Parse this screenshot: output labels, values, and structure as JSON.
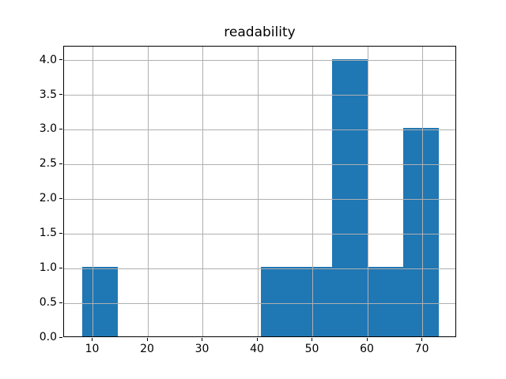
{
  "figure": {
    "background_color": "#ffffff"
  },
  "chart_data": {
    "type": "bar",
    "subtype": "histogram",
    "title": "readability",
    "xlabel": "",
    "ylabel": "",
    "bin_edges": [
      8.0,
      14.5,
      21.0,
      27.5,
      34.0,
      40.5,
      47.0,
      53.5,
      60.0,
      66.5,
      73.0
    ],
    "counts": [
      1,
      0,
      0,
      0,
      0,
      1,
      1,
      4,
      1,
      3
    ],
    "xlim": [
      4.75,
      76.25
    ],
    "ylim": [
      0,
      4.2
    ],
    "xticks": [
      10,
      20,
      30,
      40,
      50,
      60,
      70
    ],
    "xtick_labels": [
      "10",
      "20",
      "30",
      "40",
      "50",
      "60",
      "70"
    ],
    "yticks": [
      0,
      0.5,
      1,
      1.5,
      2,
      2.5,
      3,
      3.5,
      4
    ],
    "ytick_labels": [
      "0.0",
      "0.5",
      "1.0",
      "1.5",
      "2.0",
      "2.5",
      "3.0",
      "3.5",
      "4.0"
    ],
    "grid": true,
    "grid_above_bars": true,
    "bar_color": "#1f77b4",
    "grid_color": "#b0b0b0",
    "spine_color": "#000000",
    "text_color": "#000000"
  }
}
